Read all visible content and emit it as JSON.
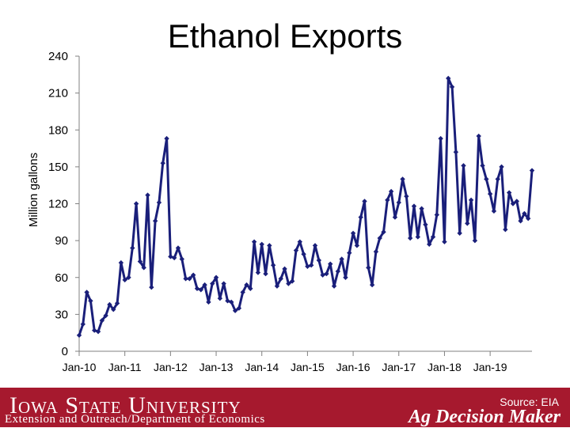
{
  "chart_data": {
    "type": "line",
    "title": "Ethanol Exports",
    "ylabel": "Million gallons",
    "xlabel": "",
    "ylim": [
      0,
      240
    ],
    "yticks": [
      0,
      30,
      60,
      90,
      120,
      150,
      180,
      210,
      240
    ],
    "xtick_labels": [
      "Jan-10",
      "Jan-11",
      "Jan-12",
      "Jan-13",
      "Jan-14",
      "Jan-15",
      "Jan-16",
      "Jan-17",
      "Jan-18",
      "Jan-19"
    ],
    "grid": false,
    "series": [
      {
        "name": "",
        "color": "#1a1f7a",
        "x_start": "Jan-10",
        "frequency": "monthly",
        "values": [
          13,
          22,
          48,
          41,
          17,
          16,
          25,
          29,
          38,
          34,
          39,
          72,
          58,
          60,
          84,
          120,
          73,
          68,
          127,
          52,
          106,
          121,
          153,
          173,
          77,
          76,
          84,
          75,
          59,
          59,
          62,
          51,
          50,
          54,
          40,
          55,
          60,
          43,
          55,
          41,
          40,
          33,
          35,
          48,
          54,
          51,
          89,
          64,
          87,
          63,
          86,
          70,
          53,
          59,
          67,
          55,
          57,
          82,
          89,
          79,
          69,
          70,
          86,
          74,
          62,
          63,
          71,
          53,
          65,
          75,
          60,
          80,
          96,
          86,
          109,
          122,
          68,
          54,
          81,
          92,
          97,
          123,
          130,
          109,
          121,
          140,
          126,
          92,
          118,
          93,
          116,
          103,
          87,
          93,
          111,
          173,
          89,
          222,
          215,
          162,
          96,
          151,
          104,
          123,
          90,
          175,
          151,
          140,
          128,
          114,
          140,
          150,
          99,
          129,
          120,
          122,
          106,
          112,
          108,
          147
        ]
      }
    ]
  },
  "footer": {
    "university": "Iowa State University",
    "department": "Extension and Outreach/Department of Economics",
    "source": "Source: EIA",
    "brand": "Ag Decision Maker"
  }
}
